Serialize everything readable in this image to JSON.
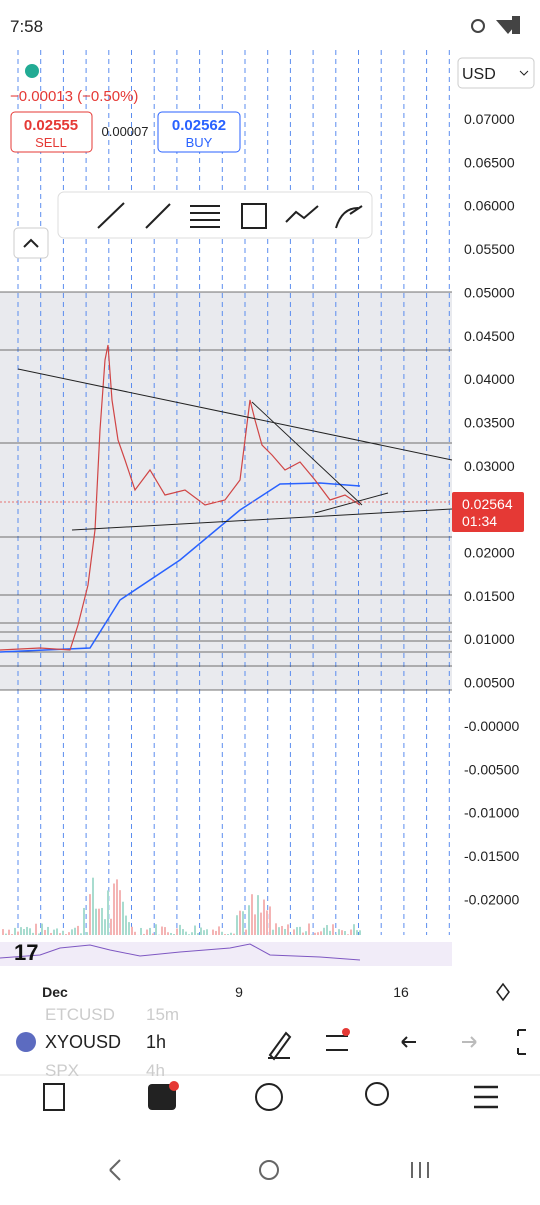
{
  "status_bar": {
    "time": "7:58"
  },
  "header": {
    "currency": "USD",
    "change": "−0.00013 (−0.50%)",
    "sell_price": "0.02555",
    "sell_label": "SELL",
    "spread": "0.00007",
    "buy_price": "0.02562",
    "buy_label": "BUY"
  },
  "price_axis": [
    "0.07000",
    "0.06500",
    "0.06000",
    "0.05500",
    "0.05000",
    "0.04500",
    "0.04000",
    "0.03500",
    "0.03000",
    "0.02000",
    "0.01500",
    "0.01000",
    "0.00500",
    "-0.00000",
    "-0.00500",
    "-0.01000",
    "-0.01500",
    "-0.02000"
  ],
  "current_price": {
    "price": "0.02564",
    "countdown": "01:34"
  },
  "time_axis": [
    "Dec",
    "9",
    "16"
  ],
  "toolbar": {
    "symbol": "XYOUSD",
    "interval": "1h",
    "prev_symbol": "ETCUSD",
    "prev_interval": "15m",
    "next_symbol": "SPX",
    "next_interval": "4h"
  },
  "nav": [
    "Watchlist",
    "Chart",
    "Explore",
    "Ideas",
    "Menu"
  ]
}
